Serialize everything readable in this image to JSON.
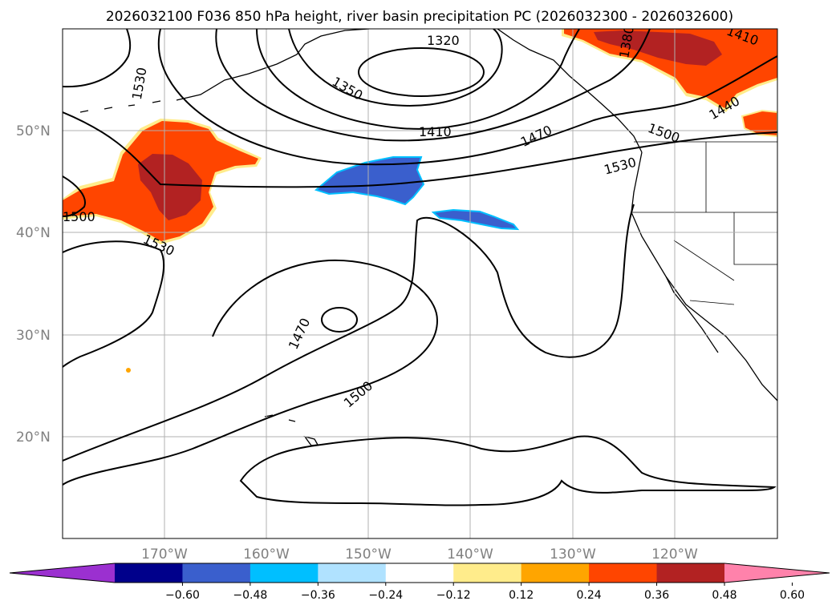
{
  "title": "2026032100 F036 850 hPa height, river basin precipitation PC (2026032300 - 2026032600)",
  "lat_labels": [
    "50°N",
    "40°N",
    "30°N",
    "20°N"
  ],
  "lon_labels": [
    "170°W",
    "160°W",
    "150°W",
    "140°W",
    "130°W",
    "120°W"
  ],
  "contour_labels": [
    "1320",
    "1380",
    "1410",
    "1410",
    "1350",
    "1530",
    "1470",
    "1500",
    "1440",
    "1530",
    "1500",
    "1530",
    "1470",
    "1500"
  ],
  "colorbar": {
    "ticks": [
      "−0.60",
      "−0.48",
      "−0.36",
      "−0.24",
      "−0.12",
      "0.12",
      "0.24",
      "0.36",
      "0.48",
      "0.60"
    ],
    "colors": [
      "#9b30d0",
      "#00008b",
      "#3a5fcd",
      "#00bfff",
      "#b0e2ff",
      "#ffffff",
      "#ffec8b",
      "#ffa500",
      "#ff4500",
      "#b22222",
      "#ff82ab"
    ],
    "extend": "both"
  },
  "map": {
    "region": "North Pacific and western North America",
    "lon_range": [
      -180,
      -110
    ],
    "lat_range": [
      10,
      60
    ],
    "projection": "PlateCarree",
    "grid": true,
    "contour_field": "850 hPa geopotential height",
    "contour_interval": 30,
    "fill_field": "river basin precipitation PC"
  }
}
